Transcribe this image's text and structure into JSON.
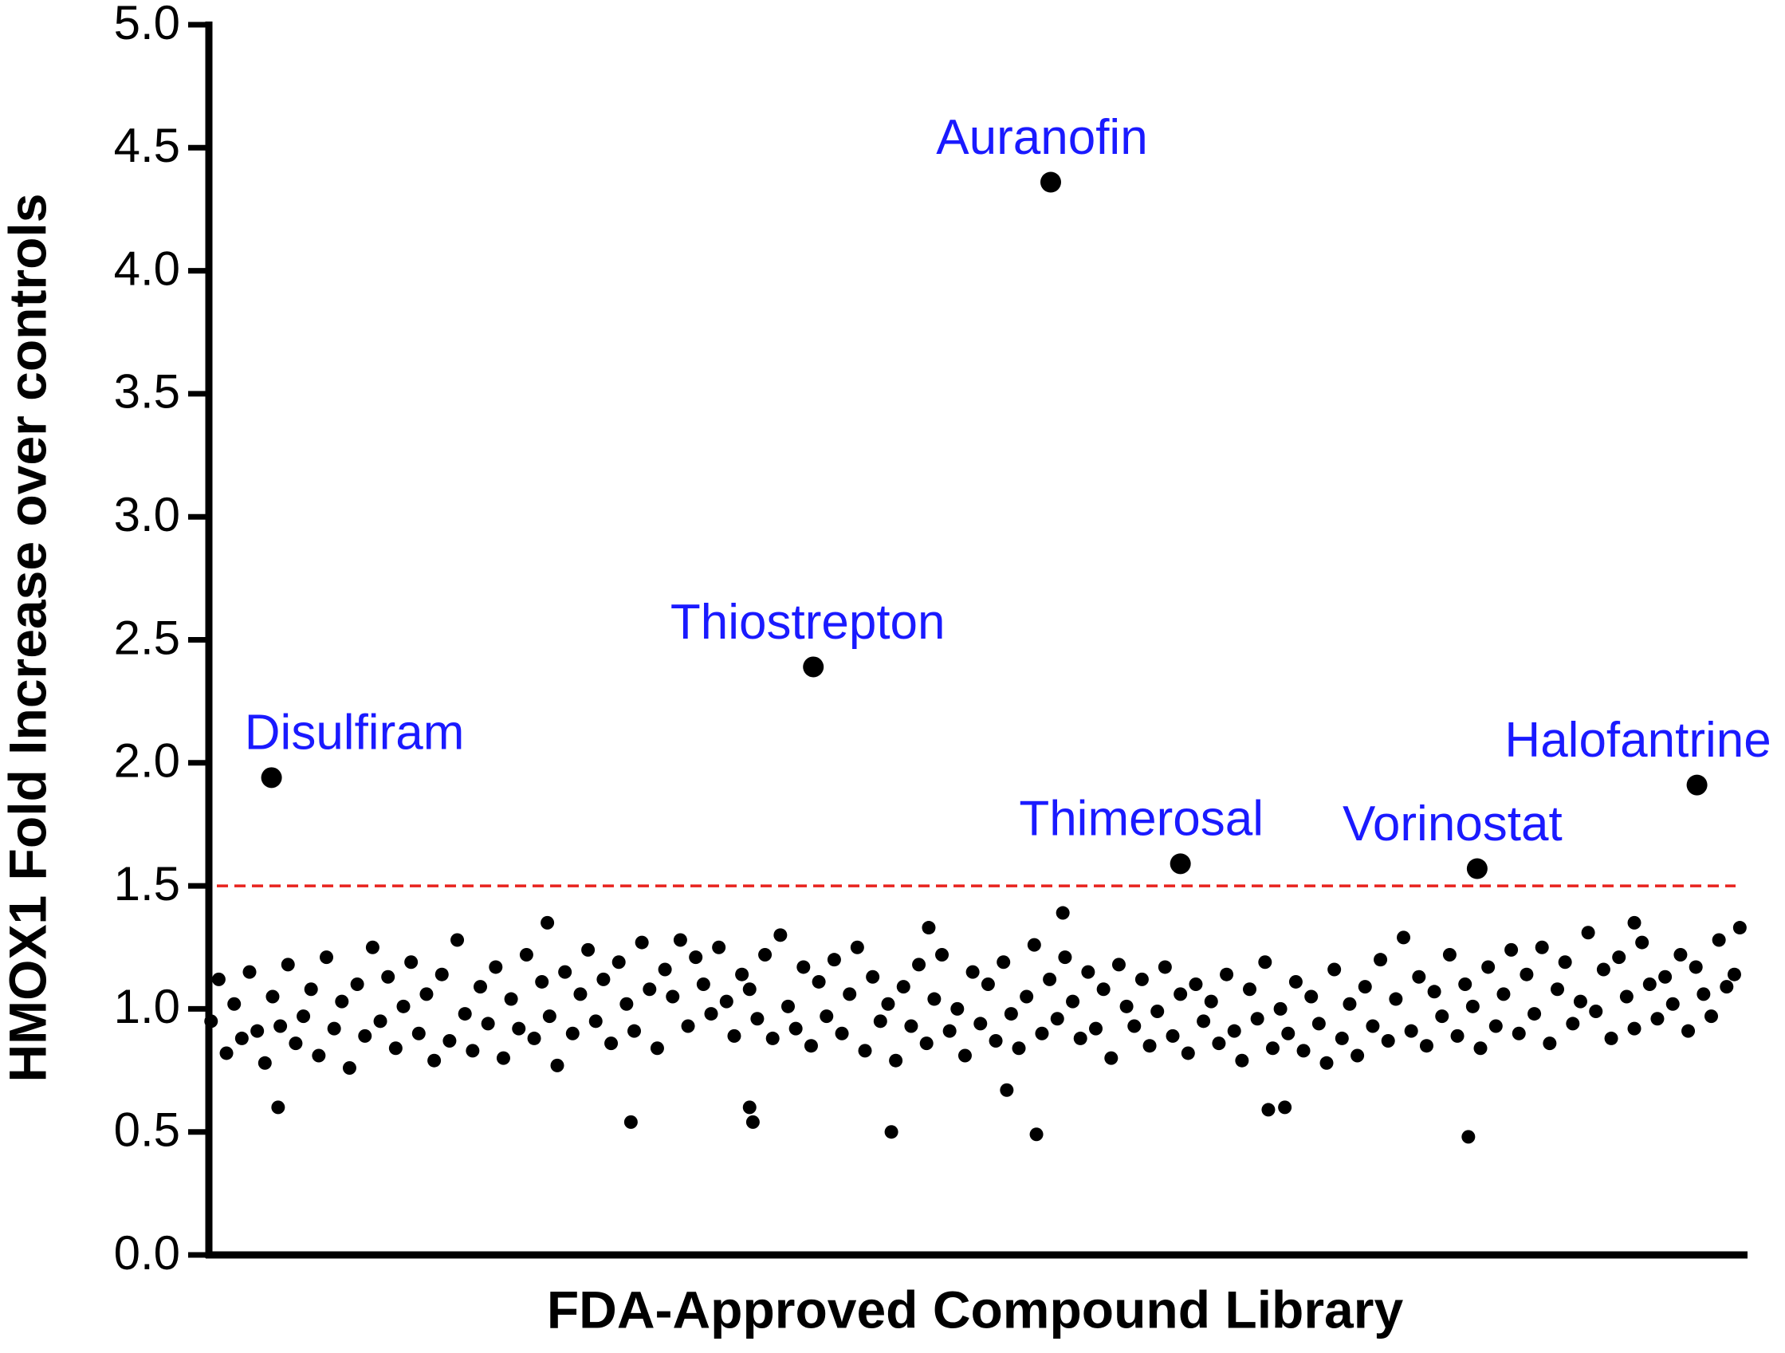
{
  "chart_data": {
    "type": "scatter",
    "xlabel": "FDA-Approved Compound Library",
    "ylabel": "HMOX1 Fold Increase over controls",
    "color": "#000000",
    "xlim": [
      0,
      1400
    ],
    "ylim": [
      0,
      5
    ],
    "yticks": [
      {
        "value": 0,
        "label": "0.0"
      },
      0.5,
      {
        "value": 1,
        "label": "1.0"
      },
      1.5,
      {
        "value": 2,
        "label": "2.0"
      },
      2.5,
      {
        "value": 3,
        "label": "3.0"
      },
      3.5,
      {
        "value": 4,
        "label": "4.0"
      },
      4.5,
      {
        "value": 5,
        "label": "5.0"
      }
    ],
    "threshold": {
      "value": 1.5,
      "color": "#e8231e"
    },
    "x": [
      2,
      9,
      16,
      23,
      30,
      37,
      44,
      51,
      58,
      65,
      72,
      79,
      86,
      93,
      100,
      107,
      114,
      121,
      128,
      135,
      142,
      149,
      156,
      163,
      170,
      177,
      184,
      191,
      198,
      205,
      212,
      219,
      226,
      233,
      240,
      247,
      254,
      261,
      268,
      275,
      282,
      289,
      296,
      303,
      310,
      317,
      324,
      331,
      338,
      345,
      352,
      359,
      366,
      373,
      380,
      387,
      394,
      401,
      408,
      415,
      422,
      429,
      436,
      443,
      450,
      457,
      464,
      471,
      478,
      485,
      492,
      499,
      506,
      513,
      520,
      527,
      534,
      541,
      548,
      555,
      562,
      569,
      576,
      583,
      590,
      597,
      604,
      611,
      618,
      625,
      632,
      639,
      646,
      653,
      660,
      667,
      674,
      681,
      688,
      695,
      702,
      709,
      716,
      723,
      730,
      737,
      744,
      751,
      758,
      765,
      772,
      779,
      786,
      793,
      800,
      807,
      814,
      821,
      828,
      835,
      842,
      849,
      856,
      863,
      870,
      877,
      884,
      891,
      898,
      905,
      912,
      919,
      926,
      933,
      940,
      947,
      954,
      961,
      968,
      975,
      982,
      989,
      996,
      1003,
      1010,
      1017,
      1024,
      1031,
      1038,
      1045,
      1052,
      1059,
      1066,
      1073,
      1080,
      1087,
      1094,
      1101,
      1108,
      1115,
      1122,
      1129,
      1136,
      1143,
      1150,
      1157,
      1164,
      1171,
      1178,
      1185,
      1192,
      1199,
      1206,
      1213,
      1220,
      1227,
      1234,
      1241,
      1248,
      1255,
      1262,
      1269,
      1276,
      1283,
      1290,
      1297,
      1304,
      1311,
      1318,
      1325,
      1332,
      1339,
      1346,
      1353,
      1360,
      1367,
      1374,
      1381,
      1388,
      63,
      384,
      492,
      495,
      621,
      726,
      753,
      777,
      964,
      979,
      1146,
      308,
      655,
      1297,
      1393
    ],
    "values": [
      0.95,
      1.12,
      0.82,
      1.02,
      0.88,
      1.15,
      0.91,
      0.78,
      1.05,
      0.93,
      1.18,
      0.86,
      0.97,
      1.08,
      0.81,
      1.21,
      0.92,
      1.03,
      0.76,
      1.1,
      0.89,
      1.25,
      0.95,
      1.13,
      0.84,
      1.01,
      1.19,
      0.9,
      1.06,
      0.79,
      1.14,
      0.87,
      1.28,
      0.98,
      0.83,
      1.09,
      0.94,
      1.17,
      0.8,
      1.04,
      0.92,
      1.22,
      0.88,
      1.11,
      0.97,
      0.77,
      1.15,
      0.9,
      1.06,
      1.24,
      0.95,
      1.12,
      0.86,
      1.19,
      1.02,
      0.91,
      1.27,
      1.08,
      0.84,
      1.16,
      1.05,
      1.28,
      0.93,
      1.21,
      1.1,
      0.98,
      1.25,
      1.03,
      0.89,
      1.14,
      1.08,
      0.96,
      1.22,
      0.88,
      1.3,
      1.01,
      0.92,
      1.17,
      0.85,
      1.11,
      0.97,
      1.2,
      0.9,
      1.06,
      1.25,
      0.83,
      1.13,
      0.95,
      1.02,
      0.79,
      1.09,
      0.93,
      1.18,
      0.86,
      1.04,
      1.22,
      0.91,
      1.0,
      0.81,
      1.15,
      0.94,
      1.1,
      0.87,
      1.19,
      0.98,
      0.84,
      1.05,
      1.26,
      0.9,
      1.12,
      0.96,
      1.21,
      1.03,
      0.88,
      1.15,
      0.92,
      1.08,
      0.8,
      1.18,
      1.01,
      0.93,
      1.12,
      0.85,
      0.99,
      1.17,
      0.89,
      1.06,
      0.82,
      1.1,
      0.95,
      1.03,
      0.86,
      1.14,
      0.91,
      0.79,
      1.08,
      0.96,
      1.19,
      0.84,
      1.0,
      0.9,
      1.11,
      0.83,
      1.05,
      0.94,
      0.78,
      1.16,
      0.88,
      1.02,
      0.81,
      1.09,
      0.93,
      1.2,
      0.87,
      1.04,
      1.29,
      0.91,
      1.13,
      0.85,
      1.07,
      0.97,
      1.22,
      0.89,
      1.1,
      1.01,
      0.84,
      1.17,
      0.93,
      1.06,
      1.24,
      0.9,
      1.14,
      0.98,
      1.25,
      0.86,
      1.08,
      1.19,
      0.94,
      1.03,
      1.31,
      0.99,
      1.16,
      0.88,
      1.21,
      1.05,
      0.92,
      1.27,
      1.1,
      0.96,
      1.13,
      1.02,
      1.22,
      0.91,
      1.17,
      1.06,
      0.97,
      1.28,
      1.09,
      1.14,
      0.6,
      0.54,
      0.6,
      0.54,
      0.5,
      0.67,
      0.49,
      1.39,
      0.59,
      0.6,
      0.48,
      1.35,
      1.33,
      1.35,
      1.33
    ],
    "highlighted": {
      "labels": [
        "Disulfiram",
        "Thiostrepton",
        "Auranofin",
        "Thimerosal",
        "Vorinostat",
        "Halofantrine"
      ],
      "x": [
        57,
        550,
        766,
        884,
        1154,
        1354
      ],
      "values": [
        1.94,
        2.39,
        4.36,
        1.59,
        1.57,
        1.91
      ],
      "label_color": "#1a1aff"
    }
  }
}
